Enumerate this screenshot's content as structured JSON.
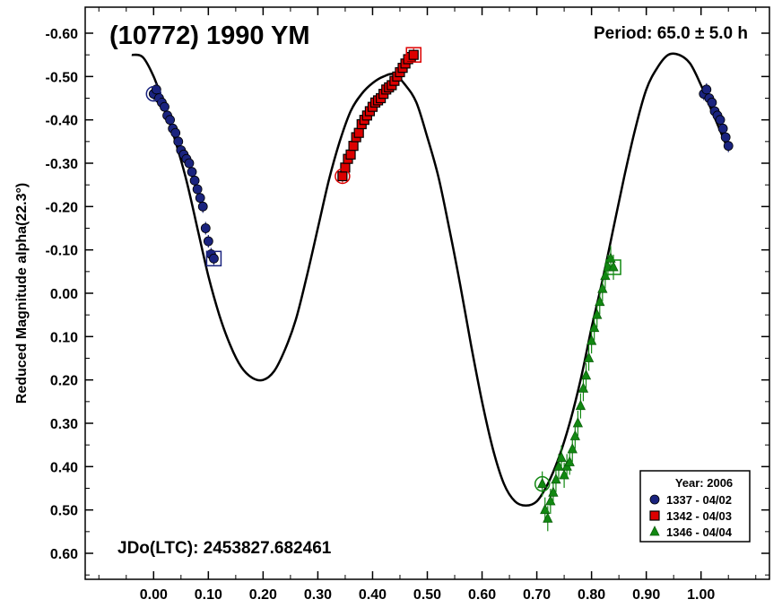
{
  "chart_data": {
    "type": "scatter",
    "title": "(10772) 1990 YM",
    "period_text": "Period: 65.0 ± 5.0 h",
    "jdo_text": "JDo(LTC): 2453827.682461",
    "ylabel": "Reduced Magnitude alpha(22.3°)",
    "xlabel": "",
    "xlim": [
      -0.125,
      1.125
    ],
    "ylim": [
      -0.66,
      0.66
    ],
    "y_inverted": true,
    "x_ticks": [
      0.0,
      0.1,
      0.2,
      0.3,
      0.4,
      0.5,
      0.6,
      0.7,
      0.8,
      0.9,
      1.0
    ],
    "x_tick_labels": [
      "0.00",
      "0.10",
      "0.20",
      "0.30",
      "0.40",
      "0.50",
      "0.60",
      "0.70",
      "0.80",
      "0.90",
      "1.00"
    ],
    "y_ticks": [
      -0.6,
      -0.5,
      -0.4,
      -0.3,
      -0.2,
      -0.1,
      0.0,
      0.1,
      0.2,
      0.3,
      0.4,
      0.5,
      0.6
    ],
    "y_tick_labels": [
      "-0.60",
      "-0.50",
      "-0.40",
      "-0.30",
      "-0.20",
      "-0.10",
      "0.00",
      "0.10",
      "0.20",
      "0.30",
      "0.40",
      "0.50",
      "0.60"
    ],
    "legend": {
      "title": "Year: 2006",
      "position": "bottom-right",
      "entries": [
        "1337 - 04/02",
        "1342 - 04/03",
        "1346 - 04/04"
      ]
    },
    "fit_curve": {
      "color": "#000000",
      "x": [
        -0.04,
        -0.02,
        0.0,
        0.02,
        0.04,
        0.06,
        0.08,
        0.1,
        0.12,
        0.14,
        0.16,
        0.18,
        0.2,
        0.22,
        0.24,
        0.26,
        0.28,
        0.3,
        0.32,
        0.34,
        0.36,
        0.38,
        0.4,
        0.42,
        0.44,
        0.46,
        0.48,
        0.5,
        0.52,
        0.54,
        0.56,
        0.58,
        0.6,
        0.62,
        0.64,
        0.66,
        0.68,
        0.7,
        0.72,
        0.74,
        0.76,
        0.78,
        0.8,
        0.82,
        0.84,
        0.86,
        0.88,
        0.9,
        0.92,
        0.94,
        0.96,
        0.98,
        1.0,
        1.02,
        1.04,
        1.05
      ],
      "y": [
        -0.55,
        -0.545,
        -0.5,
        -0.43,
        -0.35,
        -0.26,
        -0.15,
        -0.04,
        0.05,
        0.12,
        0.17,
        0.195,
        0.2,
        0.18,
        0.13,
        0.06,
        -0.04,
        -0.15,
        -0.26,
        -0.35,
        -0.42,
        -0.46,
        -0.485,
        -0.5,
        -0.505,
        -0.48,
        -0.44,
        -0.36,
        -0.27,
        -0.15,
        -0.02,
        0.12,
        0.25,
        0.36,
        0.44,
        0.48,
        0.49,
        0.48,
        0.44,
        0.38,
        0.3,
        0.2,
        0.08,
        -0.03,
        -0.15,
        -0.27,
        -0.38,
        -0.47,
        -0.52,
        -0.55,
        -0.55,
        -0.53,
        -0.48,
        -0.42,
        -0.36,
        -0.33
      ]
    },
    "series": [
      {
        "name": "1337 - 04/02",
        "color": "#1a237e",
        "marker": "circle",
        "x": [
          0.0,
          0.005,
          0.01,
          0.015,
          0.02,
          0.025,
          0.03,
          0.035,
          0.04,
          0.045,
          0.05,
          0.055,
          0.06,
          0.065,
          0.07,
          0.075,
          0.08,
          0.085,
          0.09,
          0.095,
          0.1,
          0.105,
          0.11,
          1.005,
          1.01,
          1.015,
          1.02,
          1.025,
          1.03,
          1.035,
          1.04,
          1.045,
          1.05
        ],
        "y": [
          -0.46,
          -0.47,
          -0.45,
          -0.44,
          -0.43,
          -0.41,
          -0.4,
          -0.38,
          -0.37,
          -0.35,
          -0.33,
          -0.32,
          -0.31,
          -0.3,
          -0.28,
          -0.26,
          -0.24,
          -0.22,
          -0.2,
          -0.15,
          -0.12,
          -0.09,
          -0.08,
          -0.46,
          -0.47,
          -0.45,
          -0.44,
          -0.42,
          -0.41,
          -0.4,
          -0.38,
          -0.36,
          -0.34
        ]
      },
      {
        "name": "1342 - 04/03",
        "color": "#dd0000",
        "marker": "square",
        "x": [
          0.345,
          0.35,
          0.355,
          0.36,
          0.365,
          0.37,
          0.375,
          0.38,
          0.385,
          0.39,
          0.395,
          0.4,
          0.405,
          0.41,
          0.415,
          0.42,
          0.425,
          0.43,
          0.435,
          0.44,
          0.445,
          0.45,
          0.455,
          0.46,
          0.465,
          0.47,
          0.475
        ],
        "y": [
          -0.27,
          -0.29,
          -0.31,
          -0.32,
          -0.34,
          -0.36,
          -0.37,
          -0.39,
          -0.4,
          -0.41,
          -0.42,
          -0.43,
          -0.44,
          -0.445,
          -0.45,
          -0.46,
          -0.47,
          -0.475,
          -0.48,
          -0.49,
          -0.5,
          -0.51,
          -0.52,
          -0.53,
          -0.54,
          -0.545,
          -0.55
        ]
      },
      {
        "name": "1346 - 04/04",
        "color": "#118811",
        "marker": "triangle",
        "x": [
          0.71,
          0.715,
          0.72,
          0.725,
          0.73,
          0.735,
          0.74,
          0.745,
          0.75,
          0.755,
          0.76,
          0.765,
          0.77,
          0.775,
          0.78,
          0.785,
          0.79,
          0.795,
          0.8,
          0.805,
          0.81,
          0.815,
          0.82,
          0.825,
          0.83,
          0.835,
          0.84
        ],
        "y": [
          0.44,
          0.5,
          0.52,
          0.48,
          0.46,
          0.43,
          0.4,
          0.38,
          0.42,
          0.4,
          0.39,
          0.36,
          0.33,
          0.3,
          0.26,
          0.22,
          0.19,
          0.15,
          0.11,
          0.08,
          0.05,
          0.02,
          -0.01,
          -0.04,
          -0.06,
          -0.08,
          -0.06
        ]
      }
    ]
  }
}
